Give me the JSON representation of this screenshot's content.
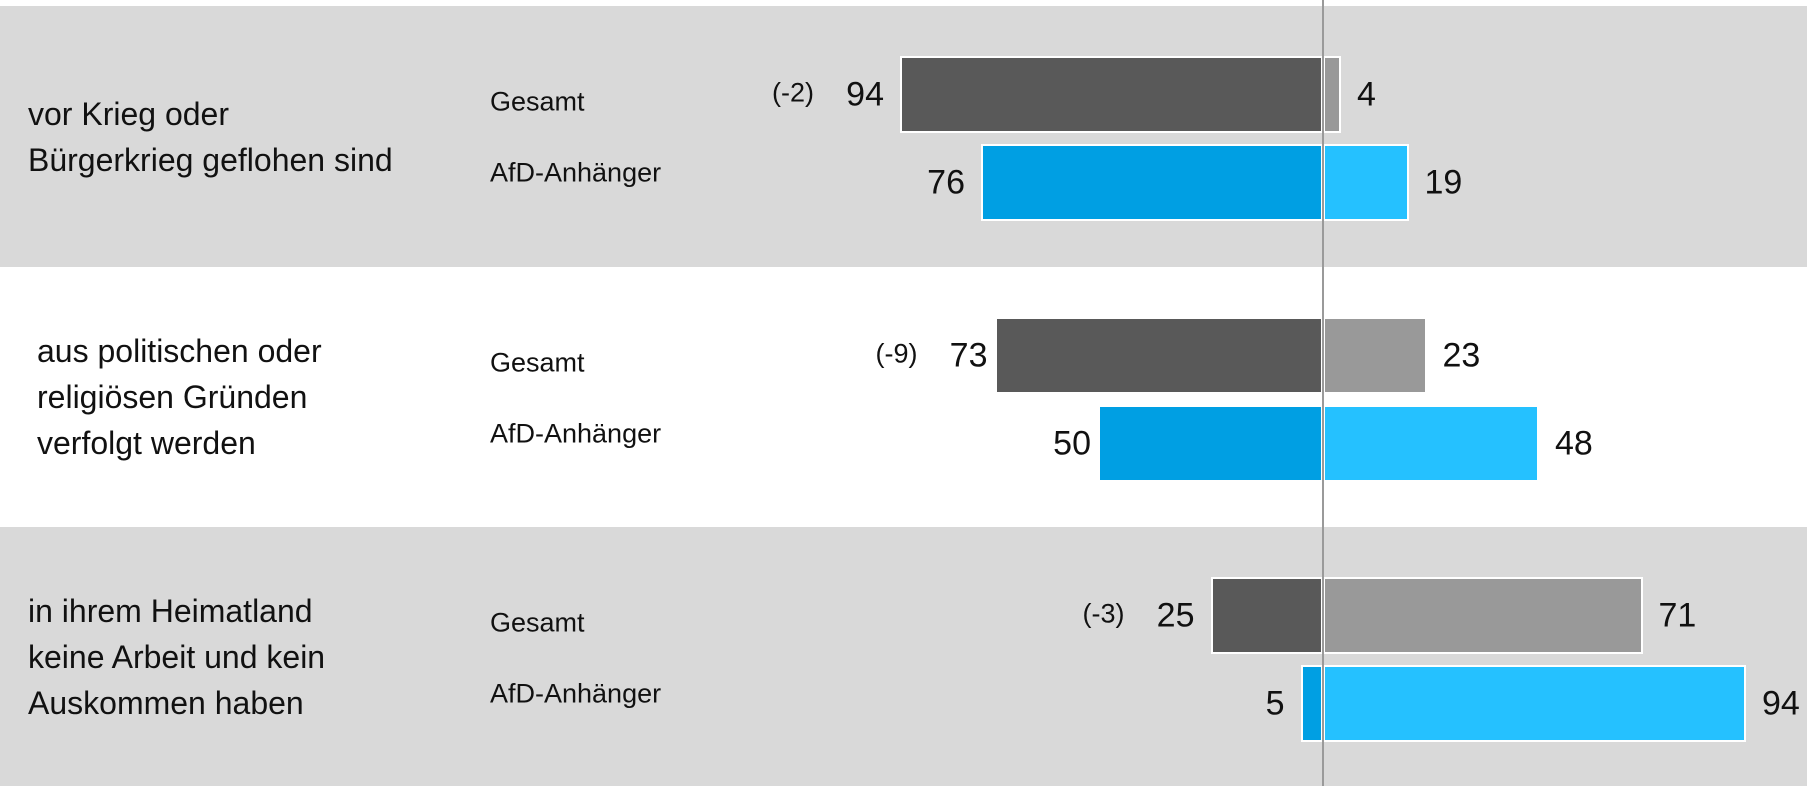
{
  "chart_data": {
    "type": "diverging_bar",
    "categories": [
      "vor Krieg oder\nBürgerkrieg geflohen sind",
      "aus politischen oder\nreligiösen Gründen\nverfolgt werden",
      "in ihrem Heimatland\nkeine Arbeit und kein\nAuskommen haben"
    ],
    "series": [
      {
        "name": "Gesamt",
        "side": "left",
        "color": "#595959",
        "values": [
          94,
          73,
          25
        ]
      },
      {
        "name": "Gesamt",
        "side": "right",
        "color": "#999999",
        "values": [
          4,
          23,
          71
        ]
      },
      {
        "name": "AfD-Anhänger",
        "side": "left",
        "color": "#009fe3",
        "values": [
          76,
          50,
          5
        ]
      },
      {
        "name": "AfD-Anhänger",
        "side": "right",
        "color": "#25c1ff",
        "values": [
          19,
          48,
          94
        ]
      }
    ],
    "changes": {
      "values": [
        -2,
        -9,
        -3
      ],
      "value_labels": [
        "(-2)",
        "(-9)",
        "(-3)"
      ]
    }
  }
}
